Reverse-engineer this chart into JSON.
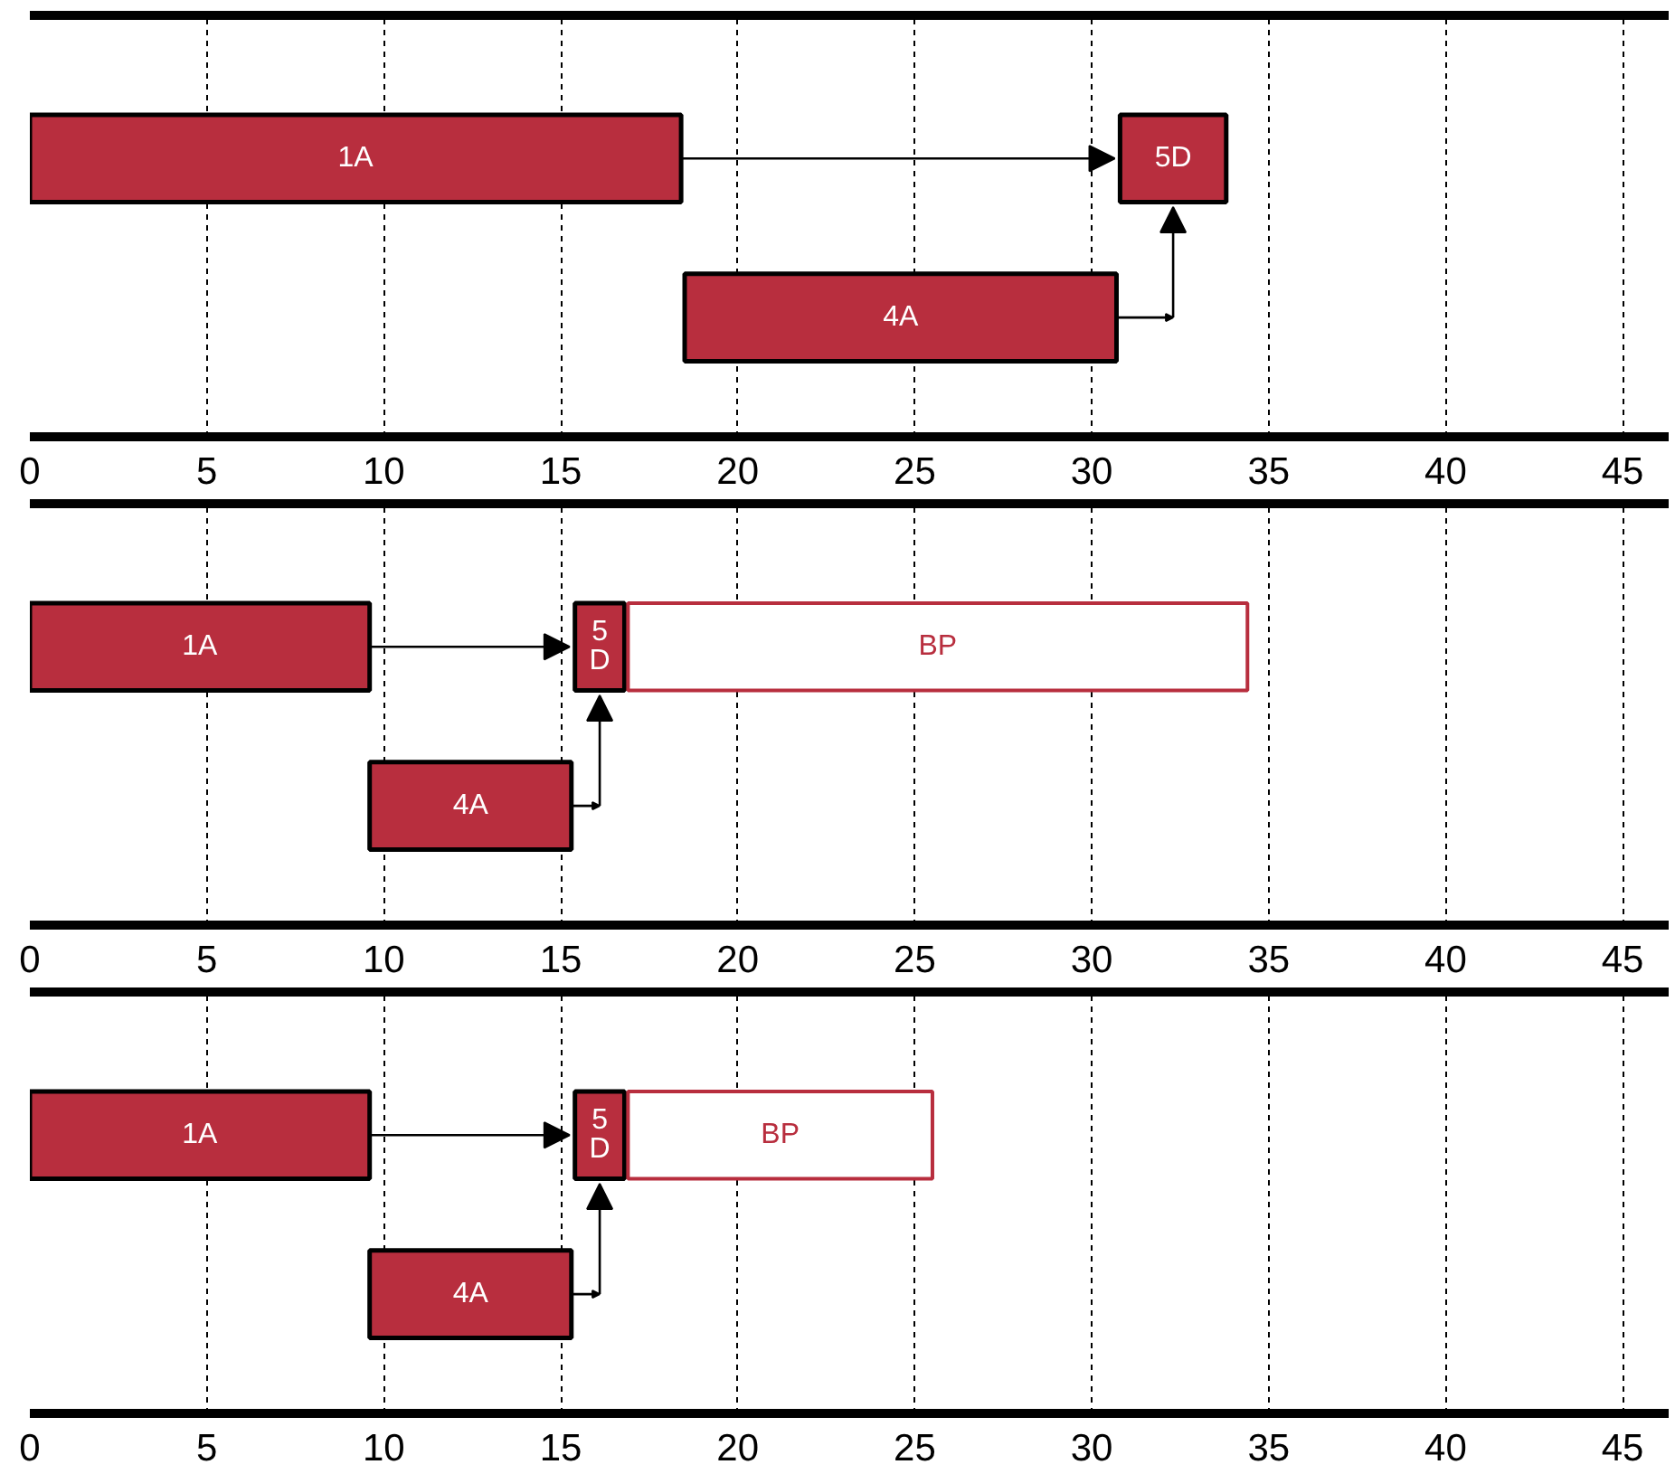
{
  "chart_data": [
    {
      "type": "bar",
      "orientation": "horizontal",
      "categories": [
        null,
        null
      ],
      "xlim": [
        0,
        46.3
      ],
      "xticks": [
        0,
        5,
        10,
        15,
        20,
        25,
        30,
        35,
        40,
        45
      ],
      "grid": "x",
      "series": [
        {
          "name": "1A",
          "color": "#b82e3e",
          "values": [
            18.4,
            null
          ],
          "base": [
            0,
            null
          ]
        },
        {
          "name": "4A",
          "color": "#b82e3e",
          "values": [
            null,
            12.2
          ],
          "base": [
            null,
            18.5
          ]
        },
        {
          "name": "5D",
          "color": "#b82e3e",
          "values": [
            3.0,
            null
          ],
          "base": [
            30.8,
            null
          ]
        }
      ]
    },
    {
      "type": "bar",
      "orientation": "horizontal",
      "categories": [
        null,
        null
      ],
      "xlim": [
        0,
        46.3
      ],
      "xticks": [
        0,
        5,
        10,
        15,
        20,
        25,
        30,
        35,
        40,
        45
      ],
      "grid": "x",
      "series": [
        {
          "name": "1A",
          "color": "#b82e3e",
          "values": [
            9.6,
            null
          ],
          "base": [
            0,
            null
          ]
        },
        {
          "name": "4A",
          "color": "#b82e3e",
          "values": [
            null,
            5.7
          ],
          "base": [
            null,
            9.6
          ]
        },
        {
          "name": "5D",
          "color": "#b82e3e",
          "values": [
            1.4,
            null
          ],
          "base": [
            15.4,
            null
          ]
        },
        {
          "name": "BP",
          "color": "#ffffff",
          "values": [
            17.5,
            null
          ],
          "base": [
            16.9,
            null
          ]
        }
      ]
    },
    {
      "type": "bar",
      "orientation": "horizontal",
      "categories": [
        null,
        null
      ],
      "xlim": [
        0,
        46.3
      ],
      "xticks": [
        0,
        5,
        10,
        15,
        20,
        25,
        30,
        35,
        40,
        45
      ],
      "grid": "x",
      "series": [
        {
          "name": "1A",
          "color": "#b82e3e",
          "values": [
            9.6,
            null
          ],
          "base": [
            0,
            null
          ]
        },
        {
          "name": "4A",
          "color": "#b82e3e",
          "values": [
            null,
            5.7
          ],
          "base": [
            null,
            9.6
          ]
        },
        {
          "name": "5D",
          "color": "#b82e3e",
          "values": [
            1.4,
            null
          ],
          "base": [
            15.4,
            null
          ]
        },
        {
          "name": "BP",
          "color": "#ffffff",
          "values": [
            8.6,
            null
          ],
          "base": [
            16.9,
            null
          ]
        }
      ]
    }
  ]
}
